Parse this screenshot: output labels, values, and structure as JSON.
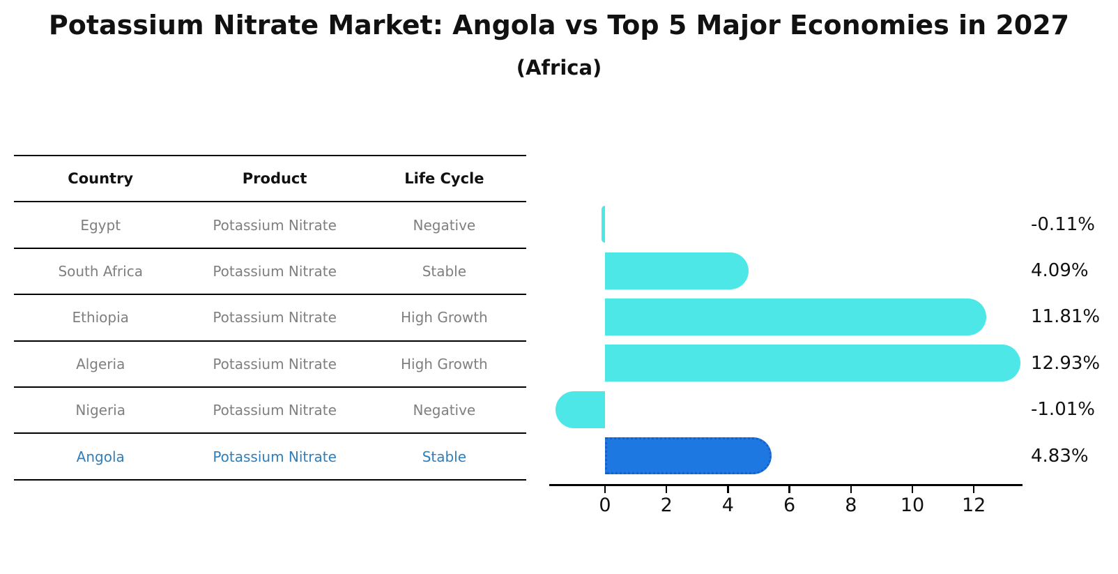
{
  "title": "Potassium Nitrate Market: Angola vs Top 5 Major Economies in 2027",
  "subtitle": "(Africa)",
  "table": {
    "headers": [
      "Country",
      "Product",
      "Life Cycle"
    ],
    "rows": [
      {
        "country": "Egypt",
        "product": "Potassium Nitrate",
        "life_cycle": "Negative",
        "highlighted": false
      },
      {
        "country": "South Africa",
        "product": "Potassium Nitrate",
        "life_cycle": "Stable",
        "highlighted": false
      },
      {
        "country": "Ethiopia",
        "product": "Potassium Nitrate",
        "life_cycle": "High Growth",
        "highlighted": false
      },
      {
        "country": "Algeria",
        "product": "Potassium Nitrate",
        "life_cycle": "High Growth",
        "highlighted": false
      },
      {
        "country": "Nigeria",
        "product": "Potassium Nitrate",
        "life_cycle": "Negative",
        "highlighted": false
      },
      {
        "country": "Angola",
        "product": "Potassium Nitrate",
        "life_cycle": "Stable",
        "highlighted": true
      }
    ]
  },
  "chart_data": {
    "type": "bar",
    "orientation": "horizontal",
    "title": "Potassium Nitrate Market: Angola vs Top 5 Major Economies in 2027",
    "subtitle": "(Africa)",
    "categories": [
      "Egypt",
      "South Africa",
      "Ethiopia",
      "Algeria",
      "Nigeria",
      "Angola"
    ],
    "values": [
      -0.11,
      4.09,
      11.81,
      12.93,
      -1.01,
      4.83
    ],
    "value_labels": [
      "-0.11%",
      "4.09%",
      "11.81%",
      "12.93%",
      "-1.01%",
      "4.83%"
    ],
    "x_ticks": [
      0,
      2,
      4,
      6,
      8,
      10,
      12
    ],
    "xlim": [
      -1.8,
      13.6
    ],
    "highlight_index": 5,
    "grid": false,
    "legend": false,
    "bar_color": "#4DE7E8",
    "highlight_bar_color": "#1E78E1",
    "highlight_edge_color": "#1A5FC8",
    "highlight_edge_style": "dotted"
  },
  "colors": {
    "text": "#111111",
    "muted_text": "#7f7f7f",
    "highlight_text": "#2E7EBC",
    "line": "#000000",
    "background": "#ffffff"
  }
}
